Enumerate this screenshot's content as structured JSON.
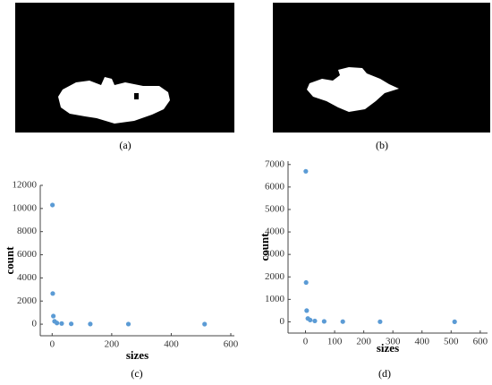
{
  "captions": [
    "(a)",
    "(b)",
    "(c)",
    "(d)"
  ],
  "chart_data": [
    {
      "type": "scatter",
      "x_label": "sizes",
      "y_label": "count",
      "series": [
        {
          "color": "#5b9bd5",
          "x": [
            1,
            2,
            4,
            8,
            16,
            32,
            64,
            128,
            256,
            512
          ],
          "values": [
            10300,
            2650,
            700,
            250,
            100,
            60,
            30,
            15,
            10,
            5
          ]
        }
      ],
      "xlim": [
        -40,
        612
      ],
      "xticks": [
        0,
        200,
        400,
        600
      ],
      "ylim": [
        -1000,
        12000
      ],
      "yticks": [
        0,
        2000,
        4000,
        6000,
        8000,
        10000,
        12000
      ]
    },
    {
      "type": "scatter",
      "x_label": "sizes",
      "y_label": "count",
      "series": [
        {
          "color": "#5b9bd5",
          "x": [
            1,
            2,
            4,
            8,
            16,
            32,
            64,
            128,
            256,
            512
          ],
          "values": [
            6700,
            1750,
            500,
            150,
            80,
            40,
            20,
            10,
            5,
            3
          ]
        }
      ],
      "xlim": [
        -60,
        625
      ],
      "xticks": [
        0,
        100,
        200,
        300,
        400,
        500,
        600
      ],
      "ylim": [
        -500,
        7150
      ],
      "yticks": [
        0,
        1000,
        2000,
        3000,
        4000,
        5000,
        6000,
        7000
      ]
    }
  ]
}
